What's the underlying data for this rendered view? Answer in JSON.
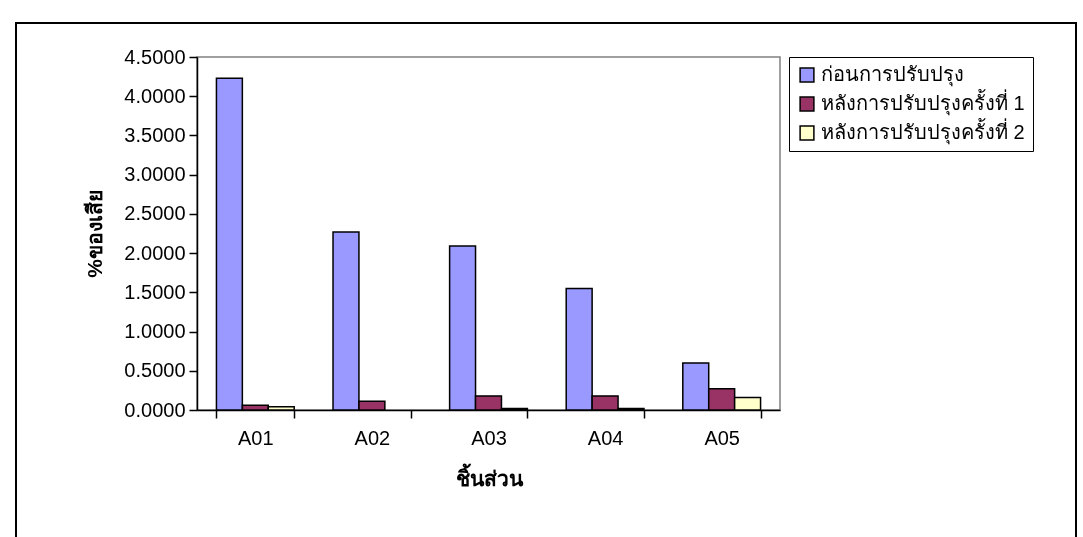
{
  "chart_data": {
    "type": "bar",
    "xlabel": "ชิ้นส่วน",
    "ylabel": "%ของเสีย",
    "categories": [
      "A01",
      "A02",
      "A03",
      "A04",
      "A05"
    ],
    "series": [
      {
        "name": "ก่อนการปรับปรุง",
        "color": "#9999ff",
        "values": [
          4.23,
          2.27,
          2.09,
          1.55,
          0.6
        ]
      },
      {
        "name": "หลังการปรับปรุงครั้งที่ 1",
        "color": "#993366",
        "values": [
          0.06,
          0.11,
          0.18,
          0.18,
          0.27
        ]
      },
      {
        "name": "หลังการปรับปรุงครั้งที่ 2",
        "color": "#ffffcc",
        "values": [
          0.04,
          null,
          0.02,
          0.02,
          0.16
        ]
      }
    ],
    "ylim": [
      0,
      4.5
    ],
    "yticks": [
      {
        "value": 0,
        "label": "0.0000"
      },
      {
        "value": 0.5,
        "label": "0.5000"
      },
      {
        "value": 1,
        "label": "1.0000"
      },
      {
        "value": 1.5,
        "label": "1.5000"
      },
      {
        "value": 2,
        "label": "2.0000"
      },
      {
        "value": 2.5,
        "label": "2.5000"
      },
      {
        "value": 3,
        "label": "3.0000"
      },
      {
        "value": 3.5,
        "label": "3.5000"
      },
      {
        "value": 4,
        "label": "4.0000"
      },
      {
        "value": 4.5,
        "label": "4.5000"
      }
    ],
    "grid": false,
    "legend": "right"
  }
}
